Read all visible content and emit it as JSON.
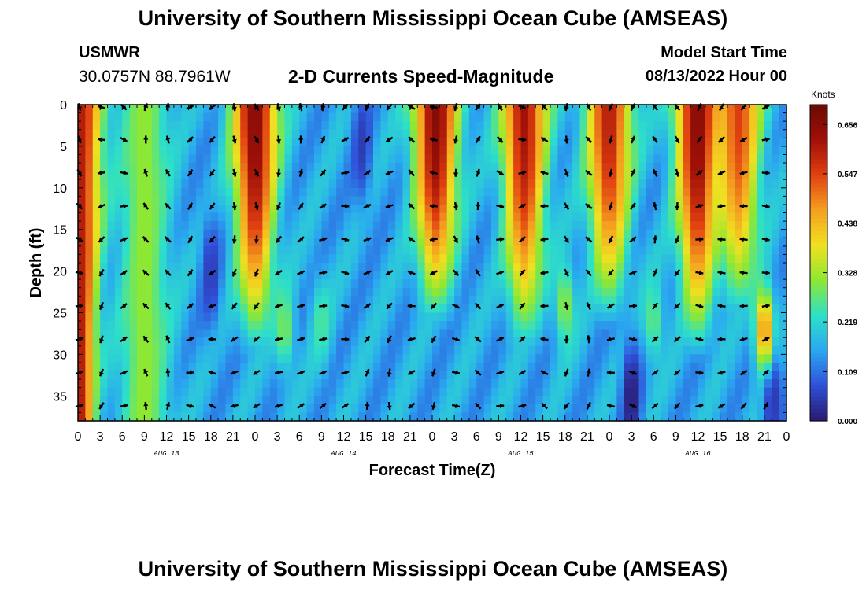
{
  "header": {
    "title": "University of Southern Mississippi Ocean Cube (AMSEAS)",
    "station_name": "USMWR",
    "coordinates": "30.0757N  88.7961W",
    "chart_title": "2-D Currents Speed-Magnitude",
    "start_label": "Model Start Time",
    "start_value": "08/13/2022 Hour 00"
  },
  "footer": {
    "title": "University of Southern Mississippi Ocean Cube (AMSEAS)"
  },
  "chart_data": {
    "type": "heatmap",
    "title": "2-D Currents Speed-Magnitude",
    "xlabel": "Forecast Time(Z)",
    "ylabel": "Depth (ft)",
    "x_range_hours": [
      0,
      96
    ],
    "y_range_ft": [
      0,
      38
    ],
    "x_ticks": [
      "0",
      "3",
      "6",
      "9",
      "12",
      "15",
      "18",
      "21",
      "0",
      "3",
      "6",
      "9",
      "12",
      "15",
      "18",
      "21",
      "0",
      "3",
      "6",
      "9",
      "12",
      "15",
      "18",
      "21",
      "0",
      "3",
      "6",
      "9",
      "12",
      "15",
      "18",
      "21",
      "0"
    ],
    "y_ticks": [
      0,
      5,
      10,
      15,
      20,
      25,
      30,
      35
    ],
    "date_labels": [
      {
        "label": "AUG 13",
        "hour": 12
      },
      {
        "label": "AUG 14",
        "hour": 36
      },
      {
        "label": "AUG 15",
        "hour": 60
      },
      {
        "label": "AUG 16",
        "hour": 84
      }
    ],
    "colorbar": {
      "unit": "Knots",
      "ticks": [
        "0.656",
        "0.547",
        "0.438",
        "0.328",
        "0.219",
        "0.109",
        "0.000"
      ],
      "min": 0.0,
      "max": 0.7,
      "colors": [
        "#2a1a6e",
        "#2f4fd8",
        "#2aa8f0",
        "#2de0c8",
        "#8ee832",
        "#f0e020",
        "#f5a020",
        "#e04010",
        "#a01008",
        "#6a0a04"
      ]
    },
    "high_speed_bands": [
      {
        "center_hour": 0.3,
        "max_speed": 0.6
      },
      {
        "center_hour": 9,
        "max_speed": 0.33
      },
      {
        "center_hour": 24,
        "max_speed": 0.66
      },
      {
        "center_hour": 48.5,
        "max_speed": 0.66
      },
      {
        "center_hour": 60.5,
        "max_speed": 0.62
      },
      {
        "center_hour": 72,
        "max_speed": 0.6
      },
      {
        "center_hour": 84,
        "max_speed": 0.66
      },
      {
        "center_hour": 89.5,
        "max_speed": 0.55
      }
    ],
    "low_speed_patches": [
      {
        "hour": 18,
        "depth_ft": 20,
        "speed": 0.05
      },
      {
        "hour": 38.5,
        "depth_ft": 5,
        "speed": 0.05
      },
      {
        "hour": 75,
        "depth_ft": 35,
        "speed": 0.0
      },
      {
        "hour": 94,
        "depth_ft": 34,
        "speed": 0.02
      }
    ]
  }
}
